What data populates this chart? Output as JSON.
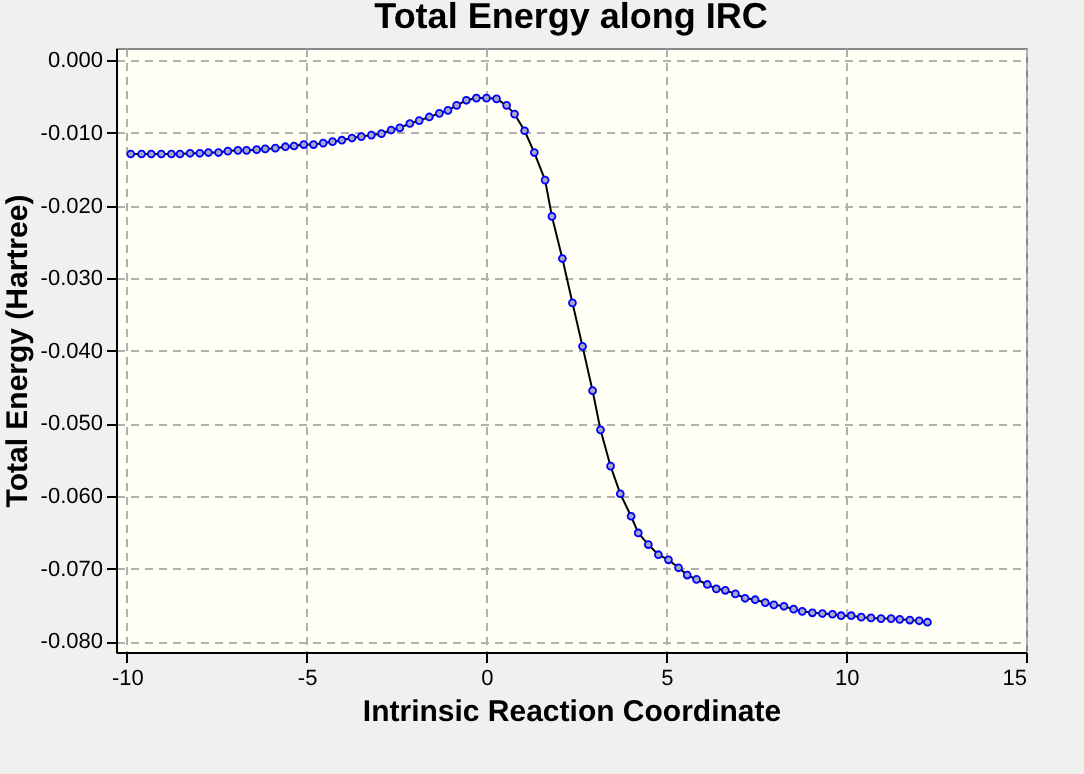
{
  "chart_data": {
    "type": "line",
    "title": "Total Energy along IRC",
    "xlabel": "Intrinsic Reaction Coordinate",
    "ylabel": "Total Energy (Hartree)",
    "x": [
      -9.89,
      -9.59,
      -9.32,
      -9.04,
      -8.76,
      -8.52,
      -8.24,
      -7.97,
      -7.73,
      -7.45,
      -7.19,
      -6.91,
      -6.67,
      -6.39,
      -6.15,
      -5.87,
      -5.59,
      -5.35,
      -5.08,
      -4.81,
      -4.54,
      -4.28,
      -4.02,
      -3.74,
      -3.48,
      -3.2,
      -2.92,
      -2.65,
      -2.41,
      -2.13,
      -1.87,
      -1.59,
      -1.31,
      -1.07,
      -0.83,
      -0.56,
      -0.28,
      0,
      0.28,
      0.56,
      0.78,
      1.06,
      1.33,
      1.63,
      1.82,
      2.11,
      2.39,
      2.67,
      2.95,
      3.17,
      3.45,
      3.72,
      4.02,
      4.22,
      4.5,
      4.78,
      5.06,
      5.34,
      5.58,
      5.84,
      6.14,
      6.39,
      6.64,
      6.92,
      7.19,
      7.47,
      7.75,
      7.99,
      8.27,
      8.54,
      8.78,
      9.06,
      9.34,
      9.62,
      9.86,
      10.14,
      10.42,
      10.69,
      10.97,
      11.25,
      11.49,
      11.77,
      12.03,
      12.26
    ],
    "series": [
      {
        "color": "#0000ff",
        "values": [
          -0.0129,
          -0.0129,
          -0.0129,
          -0.0129,
          -0.0129,
          -0.0129,
          -0.0128,
          -0.0128,
          -0.0127,
          -0.0127,
          -0.0125,
          -0.0124,
          -0.0124,
          -0.0123,
          -0.0122,
          -0.0121,
          -0.0119,
          -0.0118,
          -0.0116,
          -0.0116,
          -0.0114,
          -0.0112,
          -0.011,
          -0.0107,
          -0.0105,
          -0.0103,
          -0.0101,
          -0.0096,
          -0.0093,
          -0.0087,
          -0.0083,
          -0.0078,
          -0.0073,
          -0.0069,
          -0.0062,
          -0.0055,
          -0.0052,
          -0.0052,
          -0.0053,
          -0.0062,
          -0.0074,
          -0.0097,
          -0.0127,
          -0.0165,
          -0.0215,
          -0.0273,
          -0.0334,
          -0.0394,
          -0.0455,
          -0.0509,
          -0.0559,
          -0.0597,
          -0.0628,
          -0.0651,
          -0.0667,
          -0.0681,
          -0.0688,
          -0.0699,
          -0.0709,
          -0.0715,
          -0.0722,
          -0.0728,
          -0.073,
          -0.0735,
          -0.0741,
          -0.0743,
          -0.0747,
          -0.075,
          -0.0752,
          -0.0756,
          -0.0759,
          -0.0761,
          -0.0762,
          -0.0763,
          -0.0765,
          -0.0765,
          -0.0767,
          -0.0768,
          -0.0769,
          -0.0769,
          -0.077,
          -0.0771,
          -0.0772,
          -0.0774
        ]
      }
    ],
    "xlim": [
      -10.3,
      15
    ],
    "xticks": [
      -10,
      -5,
      0,
      5,
      10,
      15
    ],
    "ylim": [
      -0.0815,
      0.0017
    ],
    "yticks": [
      {
        "value": 0,
        "label": "0.000"
      },
      {
        "value": -0.01,
        "label": "-0.010"
      },
      {
        "value": -0.02,
        "label": "-0.020"
      },
      {
        "value": -0.03,
        "label": "-0.030"
      },
      {
        "value": -0.04,
        "label": "-0.040"
      },
      {
        "value": -0.05,
        "label": "-0.050"
      },
      {
        "value": -0.06,
        "label": "-0.060"
      },
      {
        "value": -0.07,
        "label": "-0.070"
      },
      {
        "value": -0.08,
        "label": "-0.080"
      }
    ],
    "grid": true,
    "marker": "circle",
    "line_style": "solid"
  }
}
